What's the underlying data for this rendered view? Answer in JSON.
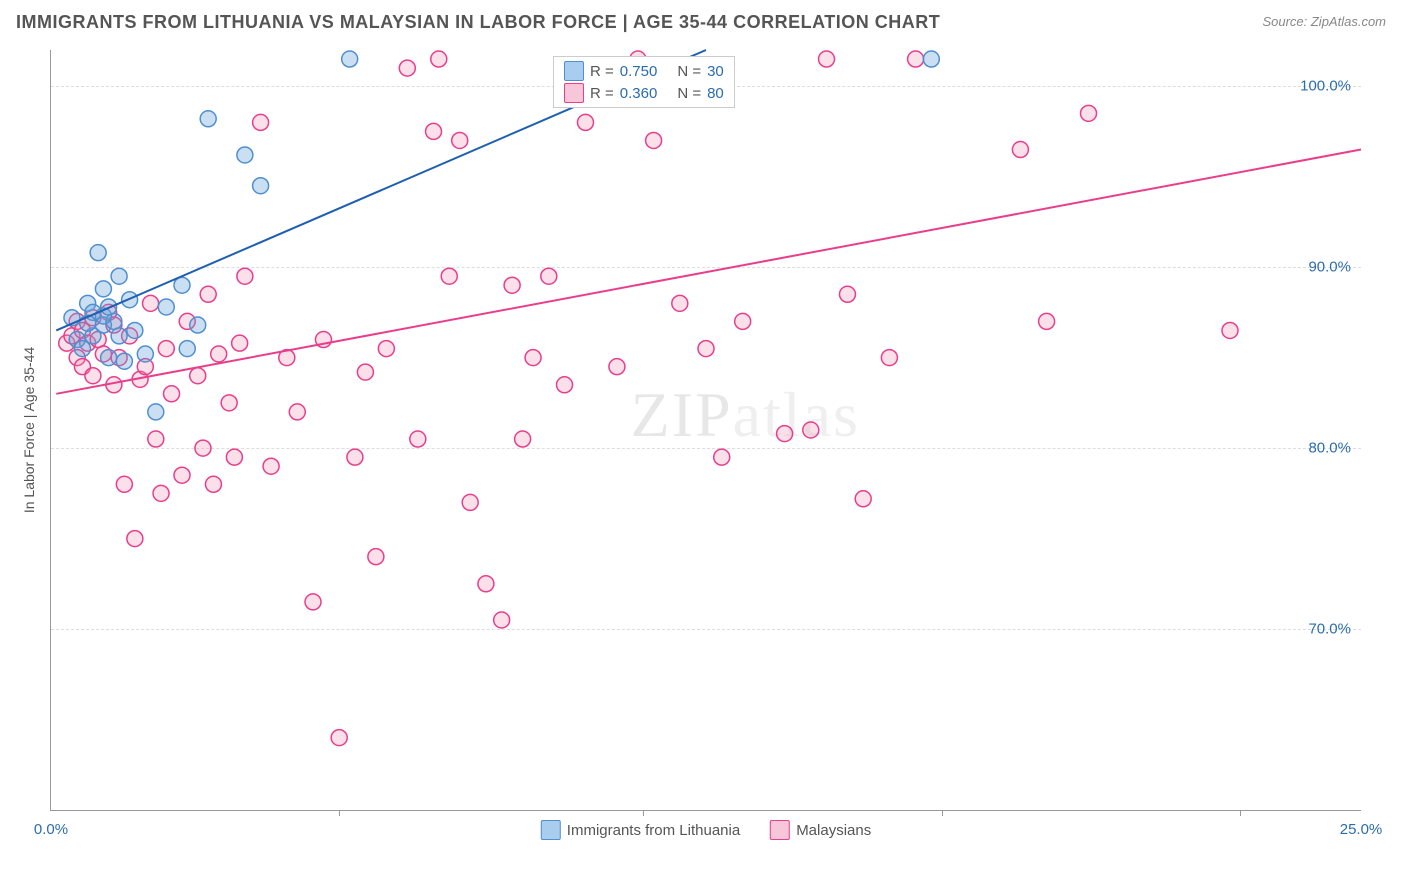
{
  "title": "IMMIGRANTS FROM LITHUANIA VS MALAYSIAN IN LABOR FORCE | AGE 35-44 CORRELATION CHART",
  "source": "Source: ZipAtlas.com",
  "watermark": "ZIPatlas",
  "yaxis_label": "In Labor Force | Age 35-44",
  "chart": {
    "type": "scatter",
    "xlim": [
      0,
      25
    ],
    "ylim": [
      60,
      102
    ],
    "background_color": "#ffffff",
    "grid_color": "#dddddd",
    "axis_color": "#999999",
    "tick_color": "#2b6cb0",
    "marker_radius": 8,
    "marker_stroke_width": 1.5,
    "line_width": 2,
    "yticks": [
      70,
      80,
      90,
      100
    ],
    "ytick_labels": [
      "70.0%",
      "80.0%",
      "90.0%",
      "100.0%"
    ],
    "xticks": [
      0,
      25
    ],
    "xtick_labels": [
      "0.0%",
      "25.0%"
    ],
    "xtick_minor": [
      5.5,
      11.3,
      17.0,
      22.7
    ],
    "series": [
      {
        "name": "Immigrants from Lithuania",
        "color_fill": "rgba(104,163,219,0.35)",
        "color_stroke": "#4f8fd1",
        "swatch_fill": "#a8cdef",
        "swatch_stroke": "#4f8fd1",
        "R": "0.750",
        "N": "30",
        "trendline": {
          "x1": 0.1,
          "y1": 86.5,
          "x2": 12.5,
          "y2": 102.0,
          "color": "#1f5fb0"
        },
        "points": [
          [
            0.4,
            87.2
          ],
          [
            0.5,
            86.0
          ],
          [
            0.6,
            85.5
          ],
          [
            0.7,
            88.0
          ],
          [
            0.8,
            87.5
          ],
          [
            0.8,
            86.2
          ],
          [
            0.9,
            90.8
          ],
          [
            1.0,
            88.8
          ],
          [
            1.0,
            86.8
          ],
          [
            1.1,
            85.0
          ],
          [
            1.2,
            87.0
          ],
          [
            1.3,
            89.5
          ],
          [
            1.4,
            84.8
          ],
          [
            1.5,
            88.2
          ],
          [
            1.6,
            86.5
          ],
          [
            1.8,
            85.2
          ],
          [
            2.0,
            82.0
          ],
          [
            2.2,
            87.8
          ],
          [
            2.5,
            89.0
          ],
          [
            2.6,
            85.5
          ],
          [
            2.8,
            86.8
          ],
          [
            3.0,
            98.2
          ],
          [
            3.7,
            96.2
          ],
          [
            4.0,
            94.5
          ],
          [
            5.7,
            101.5
          ],
          [
            1.0,
            87.3
          ],
          [
            0.7,
            86.9
          ],
          [
            1.1,
            87.8
          ],
          [
            1.3,
            86.2
          ],
          [
            16.8,
            101.5
          ]
        ]
      },
      {
        "name": "Malaysians",
        "color_fill": "rgba(241,140,177,0.28)",
        "color_stroke": "#e83e8c",
        "swatch_fill": "#f7c6d9",
        "swatch_stroke": "#e83e8c",
        "R": "0.360",
        "N": "80",
        "trendline": {
          "x1": 0.1,
          "y1": 83.0,
          "x2": 25.0,
          "y2": 96.5,
          "color": "#e83e8c"
        },
        "points": [
          [
            0.3,
            85.8
          ],
          [
            0.4,
            86.2
          ],
          [
            0.5,
            85.0
          ],
          [
            0.5,
            87.0
          ],
          [
            0.6,
            86.5
          ],
          [
            0.6,
            84.5
          ],
          [
            0.7,
            85.8
          ],
          [
            0.8,
            84.0
          ],
          [
            0.8,
            87.2
          ],
          [
            0.9,
            86.0
          ],
          [
            1.0,
            85.2
          ],
          [
            1.1,
            87.5
          ],
          [
            1.2,
            83.5
          ],
          [
            1.2,
            86.8
          ],
          [
            1.3,
            85.0
          ],
          [
            1.4,
            78.0
          ],
          [
            1.5,
            86.2
          ],
          [
            1.6,
            75.0
          ],
          [
            1.7,
            83.8
          ],
          [
            1.8,
            84.5
          ],
          [
            1.9,
            88.0
          ],
          [
            2.0,
            80.5
          ],
          [
            2.1,
            77.5
          ],
          [
            2.2,
            85.5
          ],
          [
            2.3,
            83.0
          ],
          [
            2.5,
            78.5
          ],
          [
            2.6,
            87.0
          ],
          [
            2.8,
            84.0
          ],
          [
            2.9,
            80.0
          ],
          [
            3.0,
            88.5
          ],
          [
            3.1,
            78.0
          ],
          [
            3.2,
            85.2
          ],
          [
            3.4,
            82.5
          ],
          [
            3.5,
            79.5
          ],
          [
            3.6,
            85.8
          ],
          [
            3.7,
            89.5
          ],
          [
            4.0,
            98.0
          ],
          [
            4.2,
            79.0
          ],
          [
            4.5,
            85.0
          ],
          [
            4.7,
            82.0
          ],
          [
            5.0,
            71.5
          ],
          [
            5.2,
            86.0
          ],
          [
            5.5,
            64.0
          ],
          [
            5.8,
            79.5
          ],
          [
            6.0,
            84.2
          ],
          [
            6.2,
            74.0
          ],
          [
            6.4,
            85.5
          ],
          [
            6.8,
            101.0
          ],
          [
            7.0,
            80.5
          ],
          [
            7.3,
            97.5
          ],
          [
            7.4,
            101.5
          ],
          [
            7.6,
            89.5
          ],
          [
            7.8,
            97.0
          ],
          [
            8.0,
            77.0
          ],
          [
            8.3,
            72.5
          ],
          [
            8.6,
            70.5
          ],
          [
            8.8,
            89.0
          ],
          [
            9.0,
            80.5
          ],
          [
            9.2,
            85.0
          ],
          [
            9.5,
            89.5
          ],
          [
            10.2,
            98.0
          ],
          [
            10.8,
            84.5
          ],
          [
            11.2,
            101.5
          ],
          [
            11.5,
            97.0
          ],
          [
            12.0,
            88.0
          ],
          [
            12.5,
            85.5
          ],
          [
            12.8,
            79.5
          ],
          [
            13.2,
            87.0
          ],
          [
            14.0,
            80.8
          ],
          [
            14.8,
            101.5
          ],
          [
            15.2,
            88.5
          ],
          [
            15.5,
            77.2
          ],
          [
            16.0,
            85.0
          ],
          [
            16.5,
            101.5
          ],
          [
            18.5,
            96.5
          ],
          [
            19.0,
            87.0
          ],
          [
            19.8,
            98.5
          ],
          [
            22.5,
            86.5
          ],
          [
            14.5,
            81.0
          ],
          [
            9.8,
            83.5
          ]
        ]
      }
    ]
  },
  "legend_top": {
    "rows": [
      {
        "series": 0
      },
      {
        "series": 1
      }
    ]
  }
}
